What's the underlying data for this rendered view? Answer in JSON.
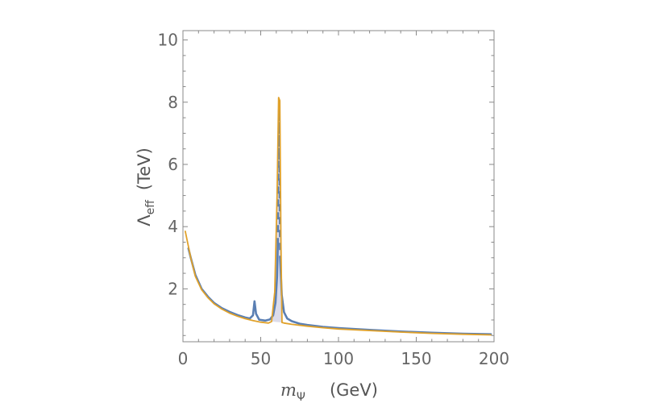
{
  "chart_data": {
    "type": "line",
    "title": "",
    "xlabel": {
      "symbol": "m",
      "subscript": "Ψ",
      "unit": "(GeV)"
    },
    "ylabel": {
      "symbol": "Λ",
      "subscript": "eff",
      "unit": "(TeV)"
    },
    "xlim": [
      0,
      200
    ],
    "ylim": [
      0.3,
      10.3
    ],
    "xticks": [
      0,
      50,
      100,
      150,
      200
    ],
    "yticks": [
      2,
      4,
      6,
      8,
      10
    ],
    "grid": false,
    "legend": "none",
    "colors": {
      "blue": "#5a7fb3",
      "orange": "#e0a12a",
      "fill": "#dcdcea",
      "axes": "#888888",
      "text": "#666666"
    },
    "series": [
      {
        "style": "solid",
        "color": "blue",
        "x": [
          3.5,
          5,
          8,
          12,
          16,
          20,
          25,
          30,
          35,
          40,
          43,
          45,
          46,
          47,
          49,
          53,
          56,
          58,
          59.5,
          60.5,
          61
        ],
        "y": [
          3.3,
          3.0,
          2.45,
          2.0,
          1.75,
          1.55,
          1.38,
          1.26,
          1.16,
          1.08,
          1.05,
          1.15,
          1.6,
          1.2,
          1.01,
          0.98,
          1.02,
          1.15,
          1.55,
          2.4,
          3.4
        ]
      },
      {
        "style": "solid",
        "color": "blue",
        "x": [
          62.5,
          63.5,
          65,
          67,
          70,
          75,
          80,
          90,
          100,
          120,
          140,
          160,
          180,
          198
        ],
        "y": [
          3.0,
          1.8,
          1.25,
          1.05,
          0.96,
          0.88,
          0.84,
          0.78,
          0.74,
          0.68,
          0.63,
          0.59,
          0.56,
          0.54
        ]
      },
      {
        "style": "dashed",
        "color": "blue",
        "x": [
          61,
          61.3,
          61.6,
          61.9,
          62.2,
          62.5
        ],
        "y": [
          3.4,
          5.2,
          7.6,
          8.0,
          5.0,
          3.0
        ]
      },
      {
        "style": "solid",
        "color": "orange",
        "x": [
          1.5,
          5,
          8,
          12,
          16,
          20,
          25,
          30,
          35,
          40,
          45,
          50,
          55,
          57,
          59,
          60.5,
          61.5,
          62.3,
          63,
          63.7,
          65,
          70,
          80,
          90,
          100,
          120,
          140,
          160,
          180,
          198
        ],
        "y": [
          3.85,
          3.0,
          2.4,
          1.97,
          1.72,
          1.52,
          1.35,
          1.22,
          1.12,
          1.04,
          0.98,
          0.93,
          0.9,
          0.95,
          1.9,
          5.0,
          8.15,
          8.05,
          3.5,
          0.92,
          0.9,
          0.86,
          0.8,
          0.75,
          0.71,
          0.66,
          0.61,
          0.57,
          0.54,
          0.52
        ]
      }
    ]
  }
}
